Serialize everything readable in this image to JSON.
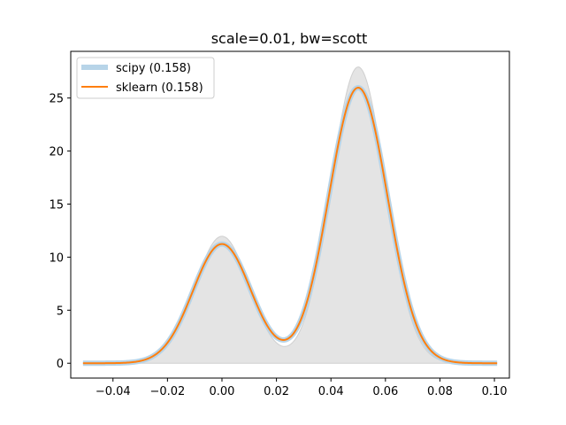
{
  "chart_data": {
    "type": "line",
    "title": "scale=0.01, bw=scott",
    "xlabel": "",
    "ylabel": "",
    "xlim": [
      -0.0555,
      0.1055
    ],
    "ylim": [
      -1.4,
      29.4
    ],
    "x_ticks": [
      -0.04,
      -0.02,
      0.0,
      0.02,
      0.04,
      0.06,
      0.08,
      0.1
    ],
    "x_tick_labels": [
      "−0.04",
      "−0.02",
      "0.00",
      "0.02",
      "0.04",
      "0.06",
      "0.08",
      "0.10"
    ],
    "y_ticks": [
      0,
      5,
      10,
      15,
      20,
      25
    ],
    "y_tick_labels": [
      "0",
      "5",
      "10",
      "15",
      "20",
      "25"
    ],
    "grid": false,
    "legend_position": "upper left",
    "true_density": {
      "fill_color": "#e4e4e4",
      "line_color": "#cfcfcf",
      "components": [
        {
          "weight": 0.3,
          "mean": 0.0,
          "std": 0.01
        },
        {
          "weight": 0.7,
          "mean": 0.05,
          "std": 0.01
        }
      ]
    },
    "series": [
      {
        "name": "scipy (0.158)",
        "color": "#b7d4e8",
        "line_width": 6,
        "components": [
          {
            "weight": 0.3,
            "mean": 0.0,
            "std": 0.01065
          },
          {
            "weight": 0.7,
            "mean": 0.05,
            "std": 0.01075
          }
        ]
      },
      {
        "name": "sklearn (0.158)",
        "color": "#ff7f0e",
        "line_width": 2,
        "components": [
          {
            "weight": 0.3,
            "mean": 0.0,
            "std": 0.01065
          },
          {
            "weight": 0.7,
            "mean": 0.05,
            "std": 0.01075
          }
        ]
      }
    ],
    "x_range": [
      -0.051,
      0.101
    ]
  }
}
